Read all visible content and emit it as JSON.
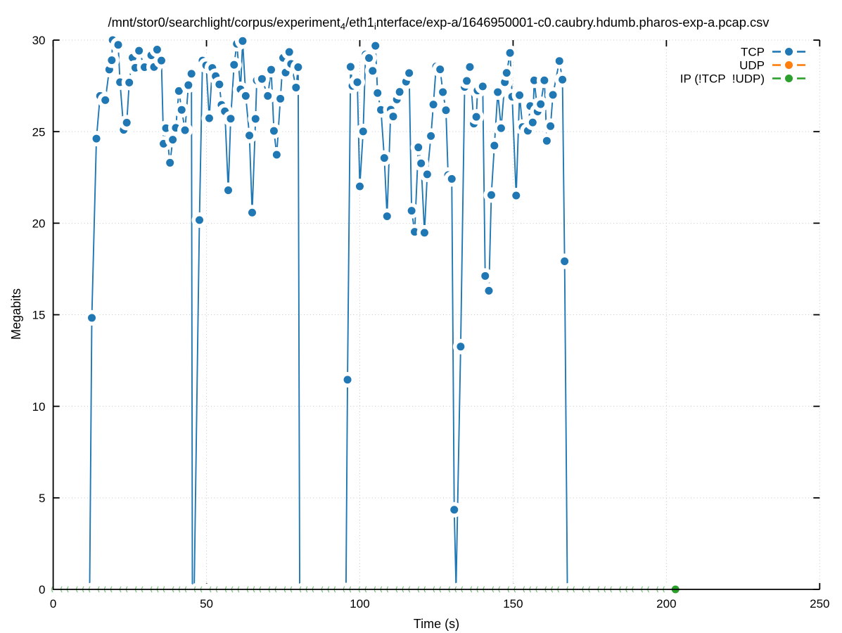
{
  "title": {
    "parts": [
      {
        "text": "/mnt/stor0/searchlight/corpus/experiment",
        "sub": false
      },
      {
        "text": "4",
        "sub": true
      },
      {
        "text": "/eth1",
        "sub": false
      },
      {
        "text": "i",
        "sub": true
      },
      {
        "text": "nterface/exp-a/1646950001-c0.caubry.hdumb.pharos-exp-a.pcap.csv",
        "sub": false
      }
    ],
    "plain": "/mnt/stor0/searchlight/corpus/experiment_4/eth1_interface/exp-a/1646950001-c0.caubry.hdumb.pharos-exp-a.pcap.csv"
  },
  "xlabel": "Time (s)",
  "ylabel": "Megabits",
  "axes": {
    "xlim": [
      0,
      250
    ],
    "ylim": [
      0,
      30
    ],
    "x_ticks": [
      0,
      50,
      100,
      150,
      200,
      250
    ],
    "y_ticks": [
      0,
      5,
      10,
      15,
      20,
      25,
      30
    ],
    "grid": true
  },
  "legend": {
    "position": "top-right-inside",
    "entries": [
      {
        "label": "TCP",
        "color": "#1f77b4"
      },
      {
        "label": "UDP",
        "color": "#ff7f0e"
      },
      {
        "label": "IP (!TCP  !UDP)",
        "color": "#2ca02c"
      }
    ]
  },
  "colors": {
    "tcp": "#1f77b4",
    "udp": "#ff7f0e",
    "ip": "#2ca02c",
    "grid": "#c6c6c6",
    "border": "#000000",
    "background": "#ffffff"
  },
  "chart_data": {
    "type": "line",
    "title": "/mnt/stor0/searchlight/corpus/experiment_4/eth1_interface/exp-a/1646950001-c0.caubry.hdumb.pharos-exp-a.pcap.csv",
    "xlabel": "Time (s)",
    "ylabel": "Megabits",
    "xlim": [
      0,
      250
    ],
    "ylim": [
      0,
      30
    ],
    "series": [
      {
        "name": "TCP",
        "color": "#1f77b4",
        "style": "linespoints",
        "segments": [
          [
            [
              11.9,
              0.05
            ],
            [
              12.6,
              14.83
            ],
            [
              14.1,
              24.62
            ],
            [
              15.3,
              26.95
            ],
            [
              17.0,
              26.72
            ],
            [
              18.3,
              28.39
            ],
            [
              19.1,
              28.9
            ],
            [
              19.4,
              30.0
            ],
            [
              21.2,
              29.74
            ],
            [
              21.8,
              27.7
            ],
            [
              23.0,
              25.1
            ],
            [
              24.0,
              25.49
            ],
            [
              24.8,
              27.68
            ],
            [
              25.9,
              29.04
            ],
            [
              26.8,
              28.49
            ],
            [
              28.0,
              29.42
            ],
            [
              29.8,
              28.52
            ],
            [
              32.0,
              29.17
            ],
            [
              32.9,
              28.53
            ],
            [
              33.9,
              29.48
            ],
            [
              35.3,
              28.88
            ],
            [
              36.0,
              24.34
            ],
            [
              36.8,
              25.19
            ],
            [
              38.1,
              23.3
            ],
            [
              39.0,
              24.56
            ],
            [
              40.0,
              25.21
            ],
            [
              41.0,
              27.22
            ],
            [
              41.9,
              26.19
            ],
            [
              43.0,
              25.08
            ],
            [
              44.1,
              27.54
            ],
            [
              45.1,
              28.16
            ],
            [
              45.4,
              0.05
            ],
            [
              46.0,
              0.05
            ],
            [
              47.7,
              20.17
            ],
            [
              48.7,
              28.88
            ],
            [
              49.9,
              28.62
            ],
            [
              50.9,
              25.73
            ],
            [
              51.9,
              28.48
            ],
            [
              53.0,
              28.03
            ],
            [
              54.2,
              27.58
            ],
            [
              54.9,
              26.46
            ],
            [
              56.0,
              26.11
            ],
            [
              57.1,
              21.8
            ],
            [
              57.9,
              25.71
            ],
            [
              59.0,
              28.65
            ],
            [
              59.9,
              29.8
            ],
            [
              61.1,
              27.31
            ],
            [
              61.8,
              29.95
            ],
            [
              62.8,
              26.95
            ],
            [
              64.0,
              24.79
            ],
            [
              64.9,
              20.58
            ],
            [
              66.0,
              25.7
            ],
            [
              66.4,
              27.8
            ],
            [
              68.1,
              27.88
            ],
            [
              70.0,
              26.95
            ],
            [
              71.1,
              28.38
            ],
            [
              72.0,
              25.04
            ],
            [
              72.9,
              23.74
            ],
            [
              74.1,
              26.8
            ],
            [
              75.0,
              29.03
            ],
            [
              75.8,
              28.23
            ],
            [
              77.0,
              29.35
            ],
            [
              77.6,
              28.7
            ],
            [
              79.2,
              27.41
            ],
            [
              79.9,
              28.52
            ],
            [
              80.4,
              0.05
            ]
          ],
          [
            [
              95.5,
              0.05
            ],
            [
              96.0,
              11.45
            ],
            [
              97.0,
              28.54
            ],
            [
              97.6,
              27.5
            ],
            [
              99.2,
              27.7
            ],
            [
              100.0,
              22.01
            ],
            [
              101.1,
              25.01
            ],
            [
              101.9,
              29.22
            ],
            [
              103.0,
              29.02
            ],
            [
              104.2,
              28.32
            ],
            [
              105.1,
              29.69
            ],
            [
              105.8,
              27.11
            ],
            [
              106.9,
              26.19
            ],
            [
              108.0,
              23.56
            ],
            [
              108.9,
              20.38
            ],
            [
              110.1,
              26.2
            ],
            [
              110.9,
              25.83
            ],
            [
              112.1,
              26.76
            ],
            [
              113.0,
              27.17
            ],
            [
              115.1,
              27.73
            ],
            [
              116.1,
              28.2
            ],
            [
              116.9,
              20.68
            ],
            [
              117.9,
              19.53
            ],
            [
              119.1,
              24.14
            ],
            [
              120.0,
              23.27
            ],
            [
              121.1,
              19.48
            ],
            [
              122.0,
              22.67
            ],
            [
              123.2,
              24.76
            ],
            [
              124.0,
              26.48
            ],
            [
              124.9,
              28.56
            ],
            [
              126.2,
              28.4
            ],
            [
              127.1,
              27.16
            ],
            [
              128.1,
              26.17
            ],
            [
              128.8,
              22.63
            ],
            [
              130.0,
              22.42
            ],
            [
              130.8,
              4.35
            ],
            [
              131.4,
              0.08
            ],
            [
              132.9,
              13.26
            ],
            [
              134.2,
              27.44
            ],
            [
              134.9,
              27.77
            ],
            [
              135.9,
              28.53
            ],
            [
              137.2,
              25.44
            ],
            [
              138.0,
              25.81
            ],
            [
              138.4,
              27.25
            ],
            [
              140.1,
              27.47
            ],
            [
              140.9,
              17.12
            ],
            [
              142.1,
              16.31
            ],
            [
              142.9,
              21.54
            ],
            [
              143.9,
              24.24
            ],
            [
              145.0,
              27.16
            ],
            [
              146.1,
              25.19
            ],
            [
              147.3,
              27.7
            ],
            [
              147.9,
              28.21
            ],
            [
              149.0,
              29.3
            ],
            [
              149.7,
              26.91
            ],
            [
              151.0,
              21.51
            ],
            [
              152.1,
              26.99
            ],
            [
              153.1,
              25.25
            ],
            [
              154.8,
              25.05
            ],
            [
              155.6,
              26.4
            ],
            [
              156.4,
              25.5
            ],
            [
              156.9,
              27.8
            ],
            [
              158.0,
              26.1
            ],
            [
              159.0,
              26.5
            ],
            [
              160.2,
              27.8
            ],
            [
              161.0,
              24.5
            ],
            [
              162.2,
              25.3
            ],
            [
              163.0,
              27.01
            ],
            [
              165.1,
              28.86
            ],
            [
              166.1,
              27.84
            ],
            [
              166.8,
              17.92
            ],
            [
              167.7,
              0.05
            ]
          ]
        ]
      },
      {
        "name": "UDP",
        "color": "#ff7f0e",
        "style": "linespoints",
        "note": "constant 0, fully hidden behind IP series markers",
        "segments": []
      },
      {
        "name": "IP (!TCP  !UDP)",
        "color": "#2ca02c",
        "style": "linespoints",
        "baseline": {
          "y": 0,
          "t_start": 0.4,
          "t_end": 200.8,
          "interval": 2.156
        },
        "last_point": [
          202.95,
          0
        ]
      }
    ]
  }
}
